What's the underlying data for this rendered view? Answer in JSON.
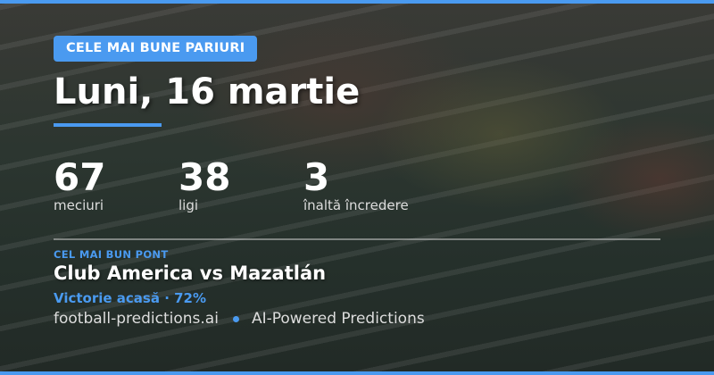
{
  "badge": "CELE MAI BUNE PARIURI",
  "title": "Luni, 16 martie",
  "stats": [
    {
      "value": "67",
      "label": "meciuri"
    },
    {
      "value": "38",
      "label": "ligi"
    },
    {
      "value": "3",
      "label": "înaltă încredere"
    }
  ],
  "best_tip": {
    "kicker": "CEL MAI BUN PONT",
    "match": "Club America vs Mazatlán",
    "pick": "Victorie acasă · 72%"
  },
  "footer": {
    "site": "football-predictions.ai",
    "tagline": "AI-Powered Predictions"
  },
  "colors": {
    "accent": "#4a9af0"
  }
}
